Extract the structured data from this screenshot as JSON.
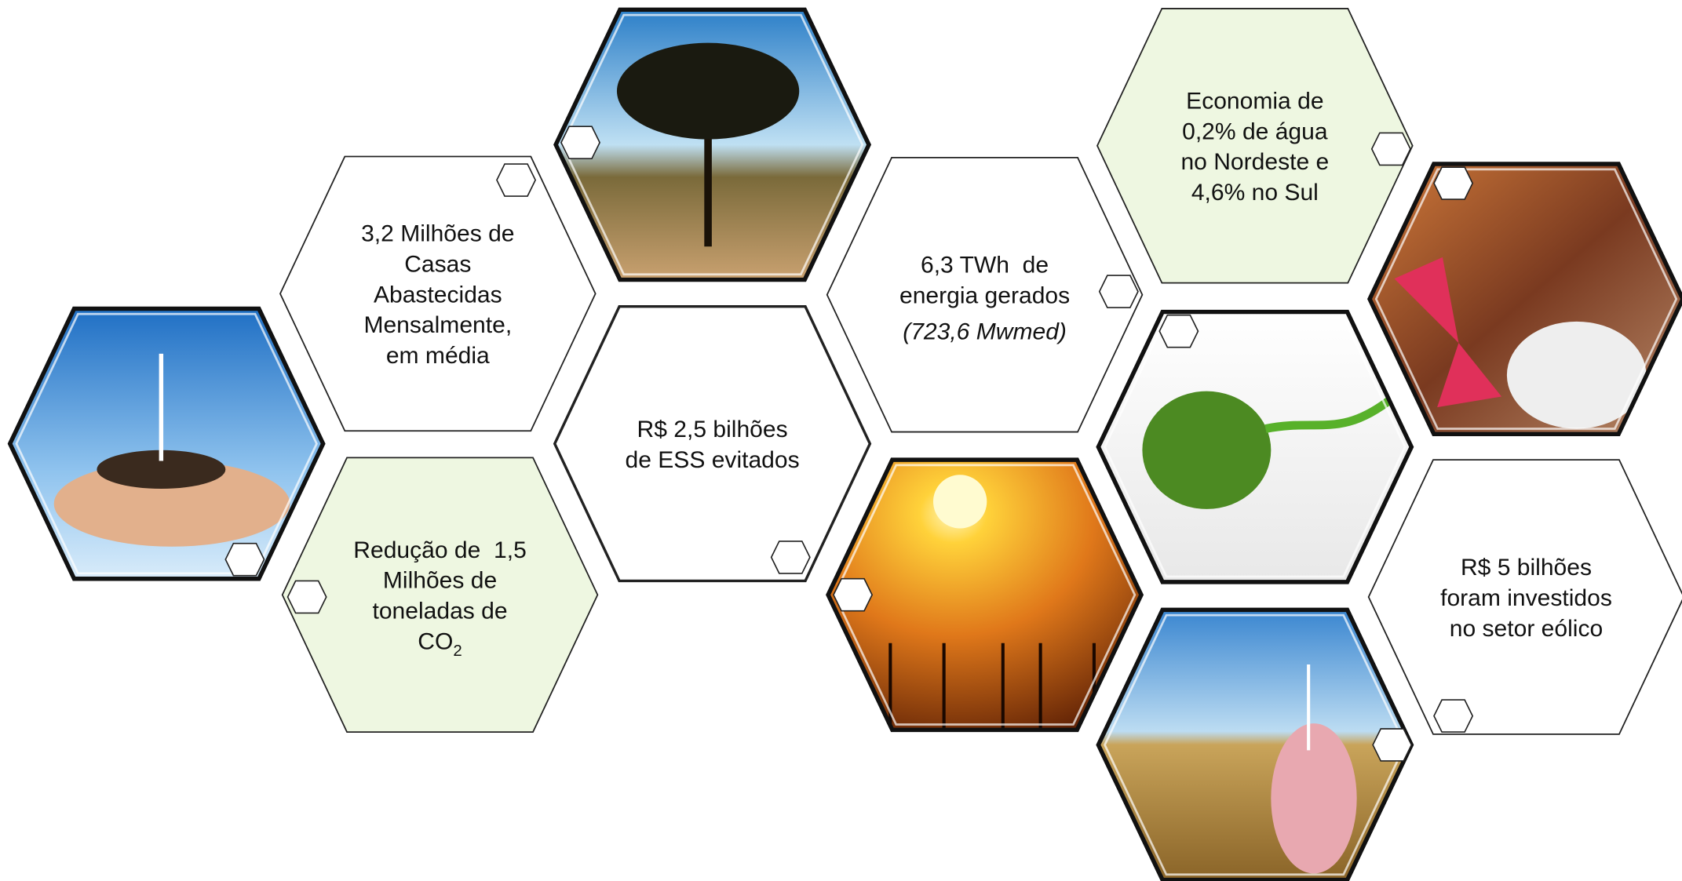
{
  "hexagons": [
    {
      "lines": [
        "3,2 Milhões de",
        "Casas",
        "Abastecidas",
        "Mensalmente,",
        "em média"
      ]
    },
    {
      "lines": [
        "Redução de  1,5",
        "Milhões de",
        "toneladas de",
        {
          "text": "CO",
          "sub": "2"
        }
      ]
    },
    {
      "lines": [
        "R$ 2,5 bilhões",
        "de ESS evitados"
      ]
    },
    {
      "lines": [
        "6,3 TWh  de",
        "energia gerados"
      ],
      "note": "(723,6 Mwmed)"
    },
    {
      "lines": [
        "Economia de",
        "0,2% de água",
        "no Nordeste e",
        "4,6% no Sul"
      ]
    },
    {
      "lines": [
        "R$ 5 bilhões",
        "foram investidos",
        "no setor eólico"
      ]
    }
  ]
}
